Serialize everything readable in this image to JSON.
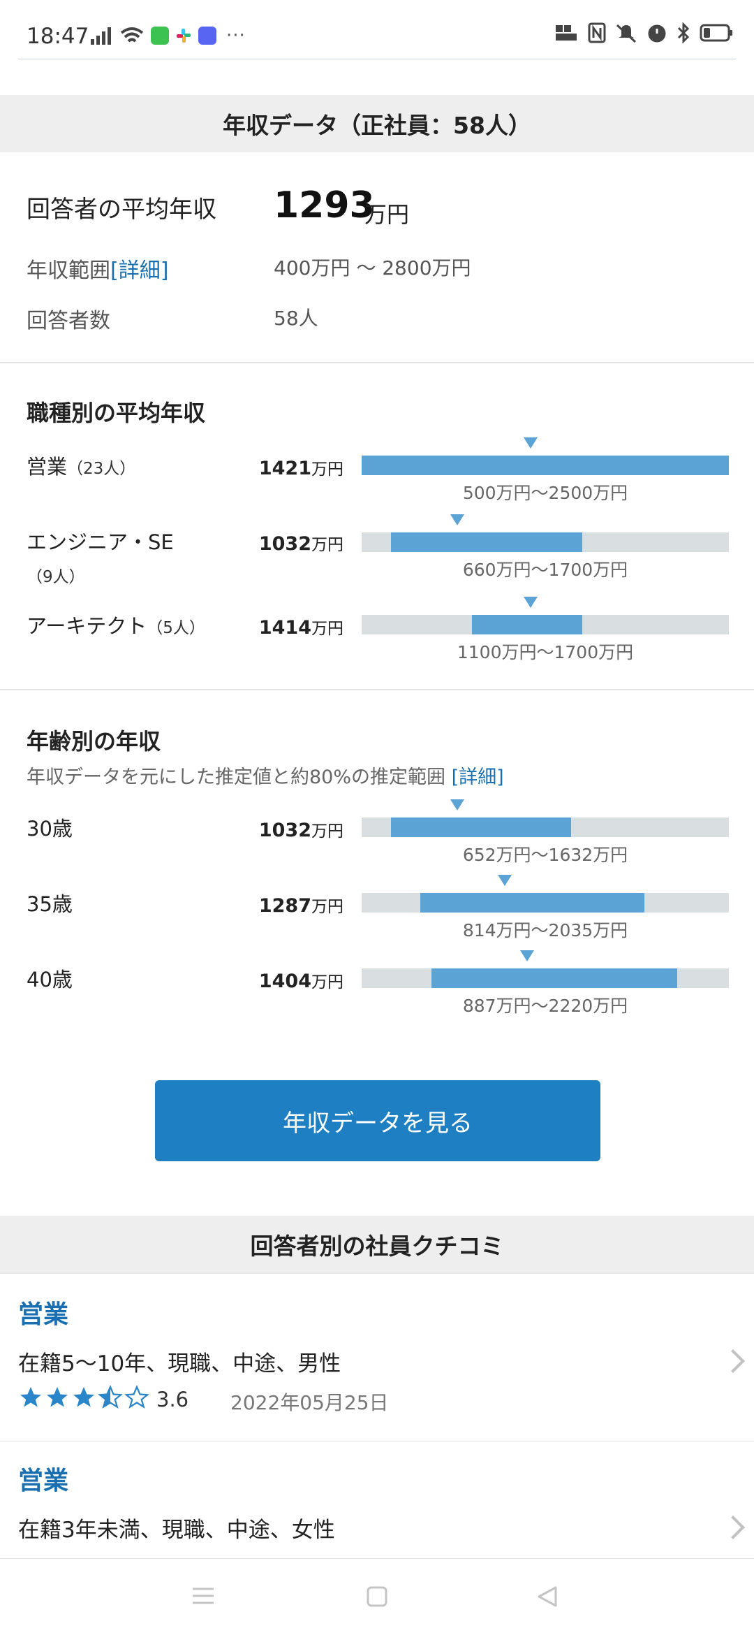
{
  "status": {
    "time": "18:47",
    "more": "···"
  },
  "salary_section": {
    "header": "年収データ（正社員：58人）",
    "avg_label": "回答者の平均年収",
    "avg_value": "1293",
    "avg_unit": "万円",
    "range_label": "年収範囲",
    "range_link": "[詳細]",
    "range_value": "400万円 〜 2800万円",
    "respondents_label": "回答者数",
    "respondents_value": "58人"
  },
  "by_job": {
    "title": "職種別の平均年収",
    "unit": "万円",
    "rows": [
      {
        "label": "営業",
        "count": "（23人）",
        "value": "1421",
        "range": "500万円〜2500万円",
        "fill_from": 0.0,
        "fill_to": 1.0,
        "marker": 0.46
      },
      {
        "label": "エンジニア・SE",
        "count": "（9人）",
        "value": "1032",
        "range": "660万円〜1700万円",
        "fill_from": 0.08,
        "fill_to": 0.6,
        "marker": 0.26
      },
      {
        "label": "アーキテクト",
        "count": "（5人）",
        "value": "1414",
        "range": "1100万円〜1700万円",
        "fill_from": 0.3,
        "fill_to": 0.6,
        "marker": 0.46
      }
    ]
  },
  "by_age": {
    "title": "年齢別の年収",
    "note": "年収データを元にした推定値と約80%の推定範囲",
    "note_link": "[詳細]",
    "unit": "万円",
    "rows": [
      {
        "label": "30歳",
        "value": "1032",
        "range": "652万円〜1632万円",
        "fill_from": 0.08,
        "fill_to": 0.57,
        "marker": 0.26
      },
      {
        "label": "35歳",
        "value": "1287",
        "range": "814万円〜2035万円",
        "fill_from": 0.16,
        "fill_to": 0.77,
        "marker": 0.39
      },
      {
        "label": "40歳",
        "value": "1404",
        "range": "887万円〜2220万円",
        "fill_from": 0.19,
        "fill_to": 0.86,
        "marker": 0.45
      }
    ]
  },
  "cta_label": "年収データを見る",
  "reviews_section": {
    "header": "回答者別の社員クチコミ",
    "items": [
      {
        "job": "営業",
        "desc": "在籍5〜10年、現職、中途、男性",
        "rating": 3.6,
        "rating_text": "3.6",
        "date": "2022年05月25日"
      },
      {
        "job": "営業",
        "desc": "在籍3年未満、現職、中途、女性"
      }
    ]
  },
  "colors": {
    "accent": "#1e7fc2",
    "bar_fill": "#5ba3d5",
    "bar_track": "#d9dee1",
    "link": "#1a6fb0"
  }
}
